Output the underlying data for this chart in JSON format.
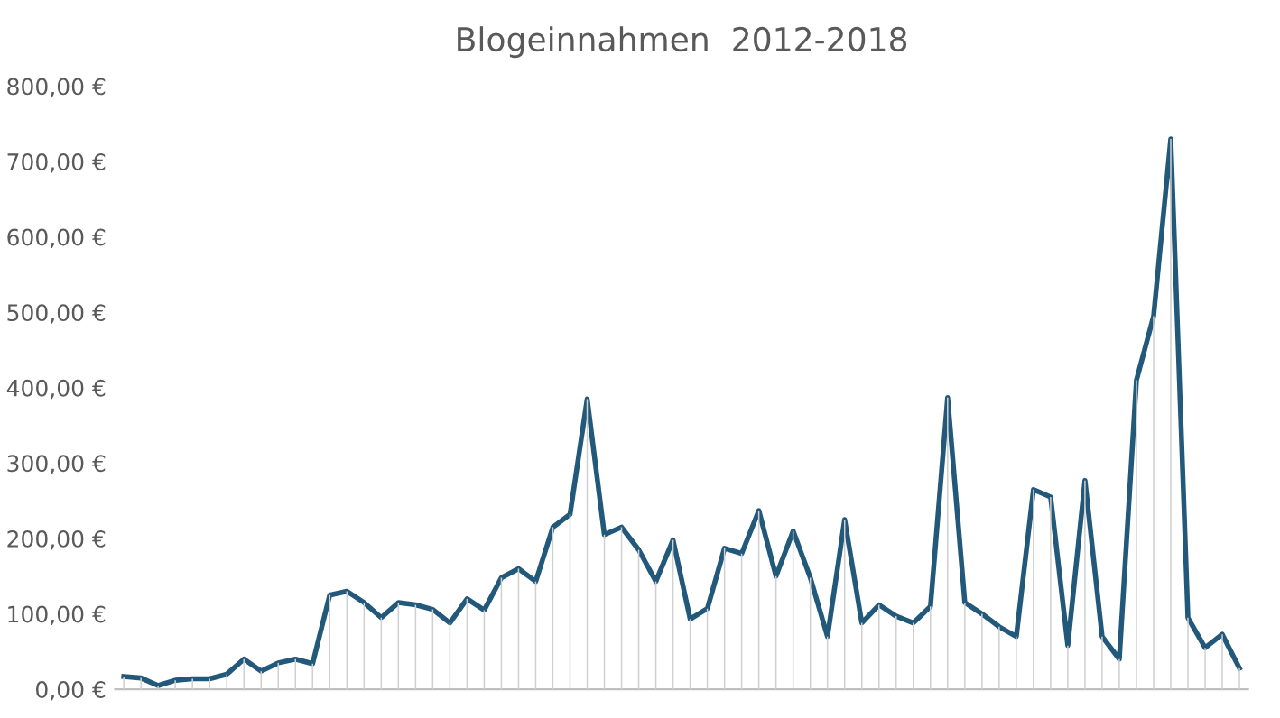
{
  "chart_data": {
    "type": "line",
    "title": "Blogeinnahmen  2012-2018",
    "categories": [
      null,
      null,
      null,
      null,
      null,
      null,
      null,
      null,
      null,
      null,
      null,
      null,
      null,
      null,
      null,
      null,
      null,
      null,
      null,
      null,
      null,
      null,
      null,
      null,
      null,
      null,
      null,
      null,
      null,
      null,
      null,
      null,
      null,
      null,
      null,
      null,
      null,
      null,
      null,
      null,
      null,
      null,
      null,
      null,
      null,
      null,
      null,
      null,
      null,
      null,
      null,
      null,
      null,
      null,
      null,
      null,
      null,
      null,
      null,
      null,
      null,
      null,
      null,
      null,
      null,
      null
    ],
    "series": [
      {
        "type": "bar",
        "color": "#d0d0d0",
        "values": [
          17,
          15,
          5,
          12,
          14,
          14,
          20,
          40,
          24,
          35,
          40,
          34,
          125,
          130,
          115,
          95,
          115,
          112,
          106,
          88,
          120,
          105,
          148,
          160,
          143,
          215,
          232,
          385,
          205,
          215,
          185,
          143,
          198,
          93,
          107,
          187,
          180,
          237,
          150,
          210,
          148,
          70,
          225,
          88,
          112,
          97,
          88,
          110,
          387,
          115,
          100,
          83,
          70,
          265,
          255,
          58,
          277,
          70,
          40,
          410,
          495,
          730,
          95,
          55,
          73,
          28
        ]
      },
      {
        "color": "#22587a",
        "values": [
          17,
          15,
          5,
          12,
          14,
          14,
          20,
          40,
          24,
          35,
          40,
          34,
          125,
          130,
          115,
          95,
          115,
          112,
          106,
          88,
          120,
          105,
          148,
          160,
          143,
          215,
          232,
          385,
          205,
          215,
          185,
          143,
          198,
          93,
          107,
          187,
          180,
          237,
          150,
          210,
          148,
          70,
          225,
          88,
          112,
          97,
          88,
          110,
          387,
          115,
          100,
          83,
          70,
          265,
          255,
          58,
          277,
          70,
          40,
          410,
          495,
          730,
          95,
          55,
          73,
          28
        ]
      }
    ],
    "ylim": [
      0,
      800
    ],
    "yticks": [
      {
        "value": 0,
        "label": "0,00 €"
      },
      {
        "value": 100,
        "label": "100,00 €"
      },
      {
        "value": 200,
        "label": "200,00 €"
      },
      {
        "value": 300,
        "label": "300,00 €"
      },
      {
        "value": 400,
        "label": "400,00 €"
      },
      {
        "value": 500,
        "label": "500,00 €"
      },
      {
        "value": 600,
        "label": "600,00 €"
      },
      {
        "value": 700,
        "label": "700,00 €"
      },
      {
        "value": 800,
        "label": "800,00 €"
      }
    ],
    "grid": false,
    "legend": false,
    "marker": "none",
    "line_style": "solid",
    "tick_labels": "y"
  }
}
